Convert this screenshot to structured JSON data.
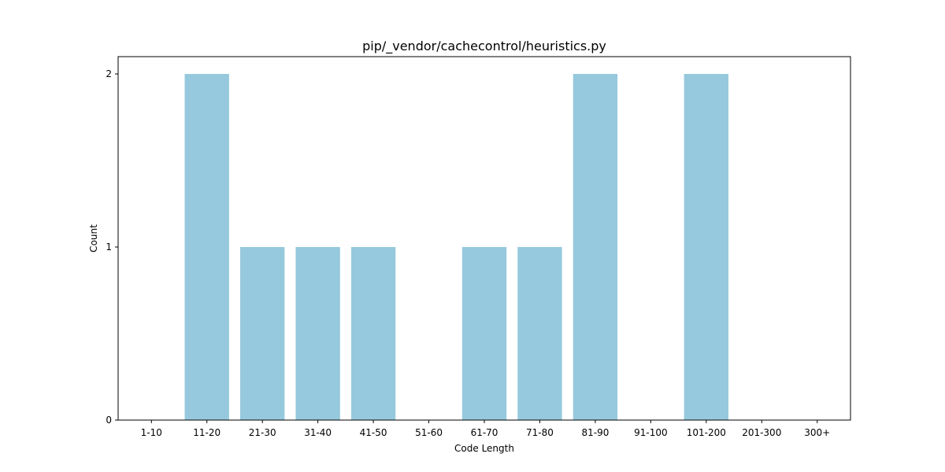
{
  "chart_data": {
    "type": "bar",
    "title": "pip/_vendor/cachecontrol/heuristics.py",
    "xlabel": "Code Length",
    "ylabel": "Count",
    "categories": [
      "1-10",
      "11-20",
      "21-30",
      "31-40",
      "41-50",
      "51-60",
      "61-70",
      "71-80",
      "81-90",
      "91-100",
      "101-200",
      "201-300",
      "300+"
    ],
    "values": [
      0,
      2,
      1,
      1,
      1,
      0,
      1,
      1,
      2,
      0,
      2,
      0,
      0
    ],
    "yticks": [
      "0",
      "1",
      "2"
    ],
    "ylim": [
      0,
      2.1
    ],
    "grid": false,
    "bar_color": "#96c9dd"
  }
}
